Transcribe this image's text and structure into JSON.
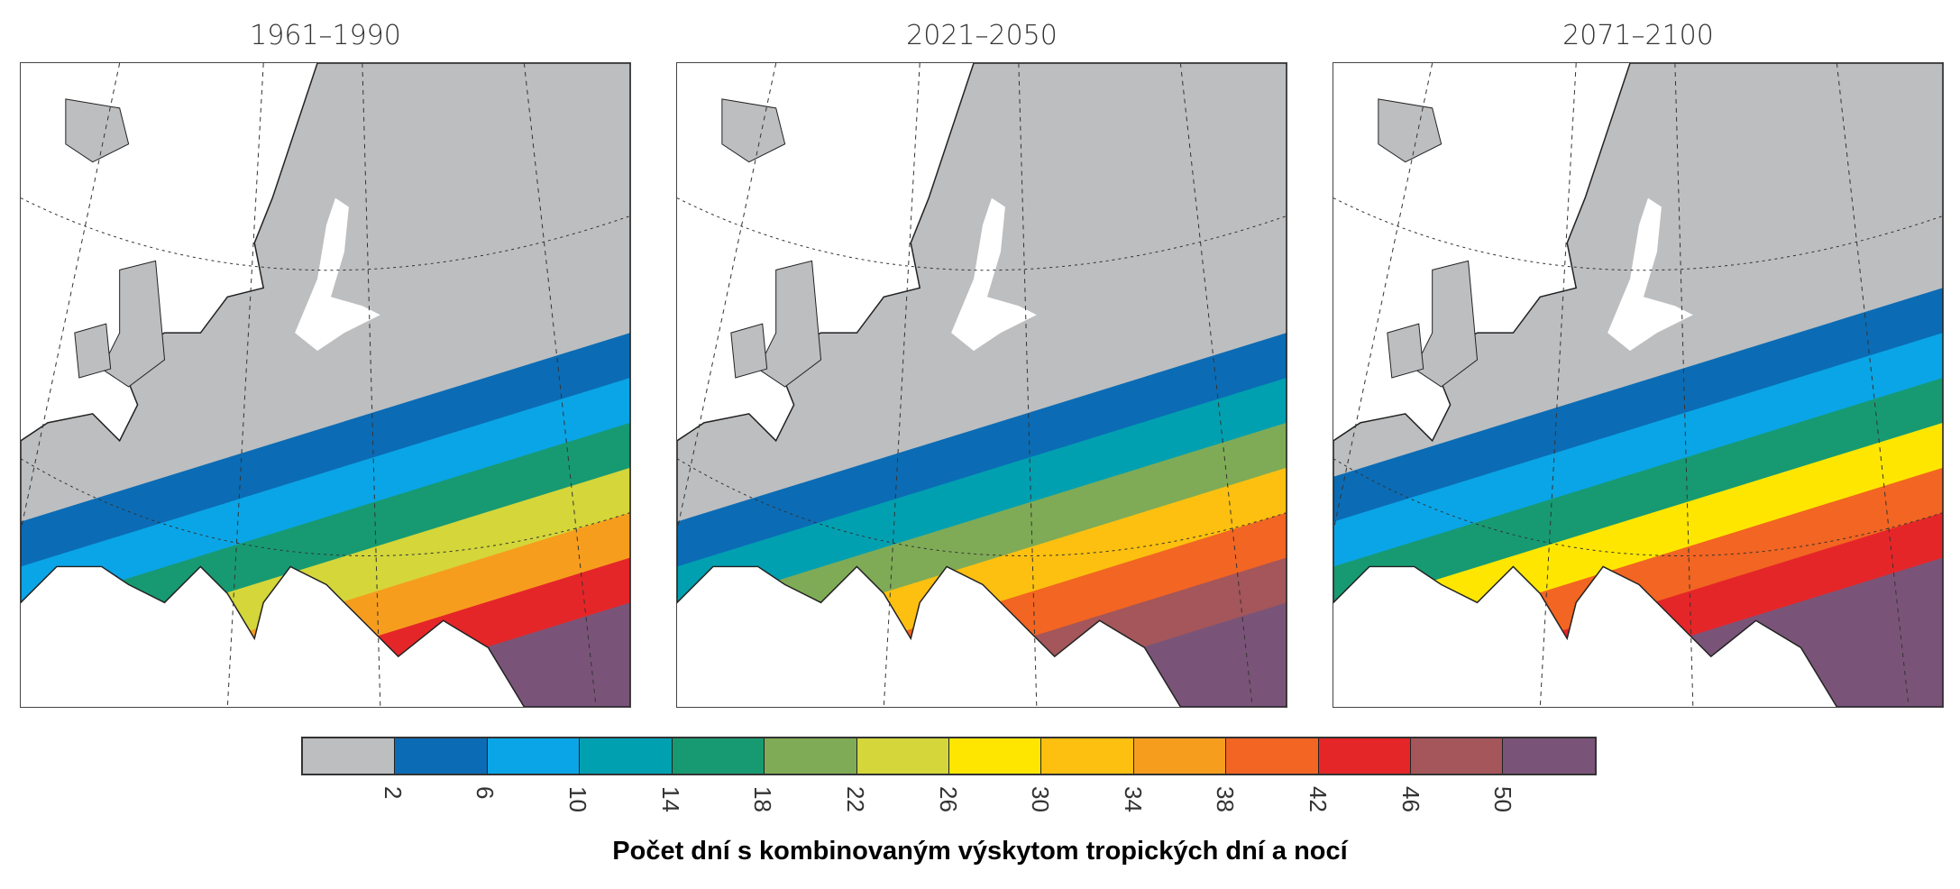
{
  "chart_data": {
    "type": "heatmap",
    "panels": [
      {
        "title": "1961–1990",
        "south_level_bins": [
          0,
          1,
          2,
          4,
          6,
          9,
          11,
          13
        ]
      },
      {
        "title": "2021–2050",
        "south_level_bins": [
          0,
          1,
          3,
          5,
          8,
          10,
          12,
          13
        ]
      },
      {
        "title": "2071–2100",
        "south_level_bins": [
          1,
          2,
          4,
          7,
          10,
          11,
          13,
          13
        ]
      }
    ],
    "colorbar": {
      "colors": [
        "#bdbec0",
        "#0b6cb5",
        "#0aa5e6",
        "#00a0b1",
        "#179a72",
        "#7fab56",
        "#d4d63a",
        "#ffe600",
        "#fdc010",
        "#f79d1e",
        "#f26522",
        "#e52629",
        "#a4565a",
        "#7a5478"
      ],
      "tick_labels": [
        "2",
        "6",
        "10",
        "14",
        "18",
        "22",
        "26",
        "30",
        "34",
        "38",
        "42",
        "46",
        "50"
      ]
    },
    "xlabel": "Počet dní s kombinovaným výskytom tropických dní a nocí"
  }
}
